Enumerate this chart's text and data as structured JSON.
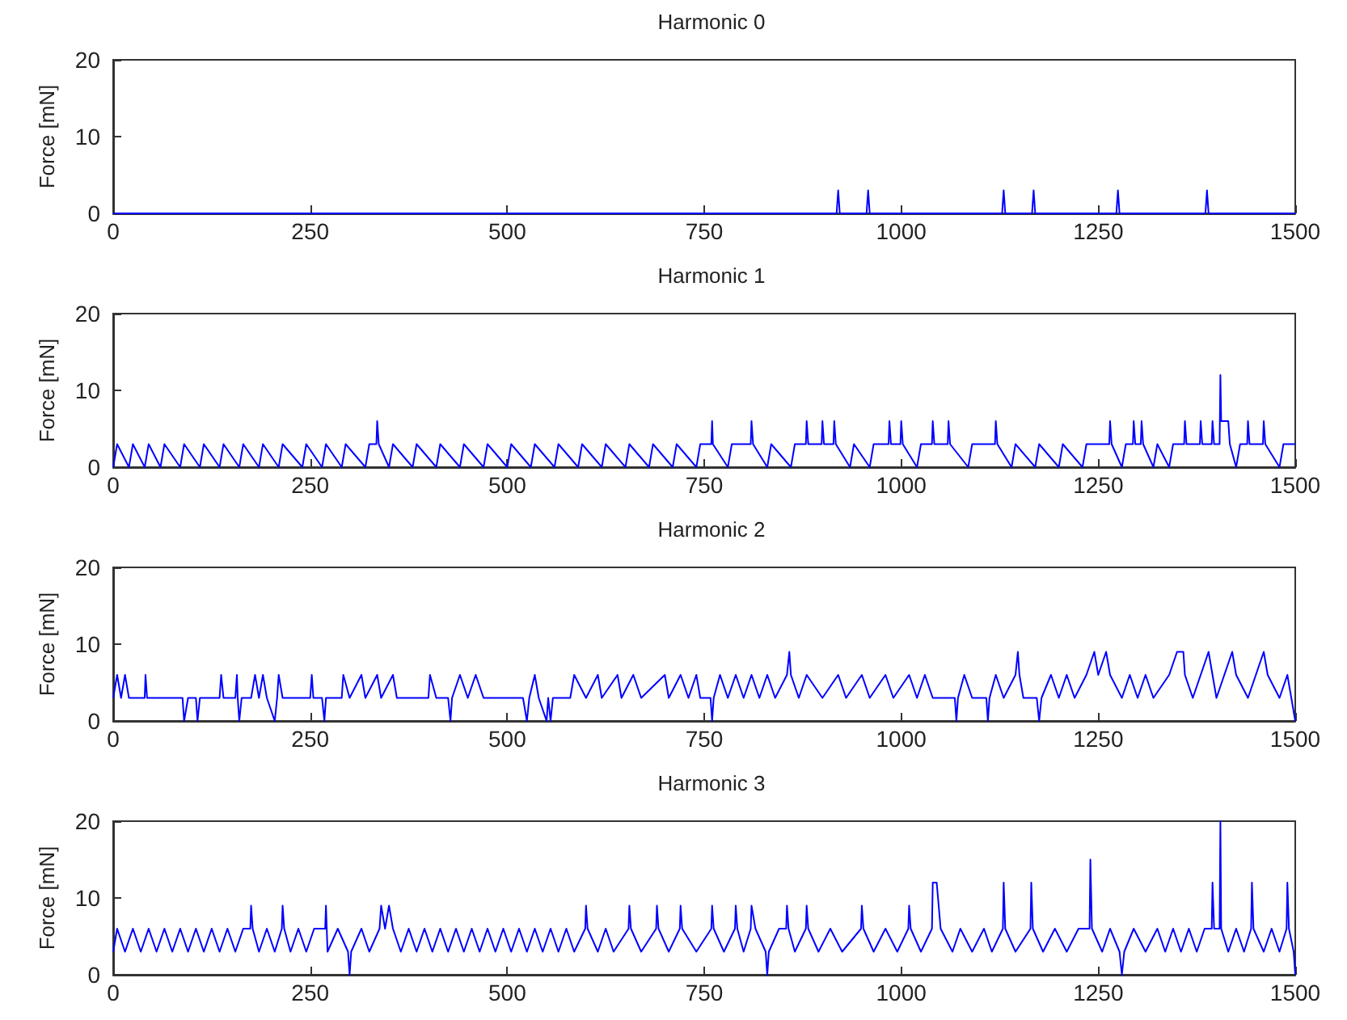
{
  "chart_data": [
    {
      "type": "line",
      "title": "Harmonic 0",
      "ylabel": "Force [mN]",
      "xlim": [
        0,
        1500
      ],
      "xticks": [
        0,
        250,
        500,
        750,
        1000,
        1250,
        1500
      ],
      "ylim": [
        0,
        20
      ],
      "yticks": [
        0,
        10,
        20
      ],
      "grid": false,
      "series": [
        {
          "color": "#0000ff",
          "x": [
            0,
            918,
            920,
            922,
            956,
            958,
            960,
            1128,
            1130,
            1132,
            1166,
            1168,
            1170,
            1273,
            1275,
            1277,
            1386,
            1388,
            1390,
            1500
          ],
          "values": [
            0,
            0,
            3,
            0,
            0,
            3,
            0,
            0,
            3,
            0,
            0,
            3,
            0,
            0,
            3,
            0,
            0,
            3,
            0,
            0
          ]
        }
      ]
    },
    {
      "type": "line",
      "title": "Harmonic 1",
      "ylabel": "Force [mN]",
      "xlim": [
        0,
        1500
      ],
      "xticks": [
        0,
        250,
        500,
        750,
        1000,
        1250,
        1500
      ],
      "ylim": [
        0,
        20
      ],
      "yticks": [
        0,
        10,
        20
      ],
      "grid": false,
      "series": [
        {
          "color": "#0000ff",
          "x": [
            0,
            5,
            20,
            25,
            40,
            45,
            60,
            65,
            85,
            90,
            110,
            115,
            135,
            140,
            160,
            165,
            185,
            190,
            210,
            215,
            240,
            245,
            265,
            270,
            290,
            295,
            320,
            325,
            334,
            335,
            337,
            350,
            355,
            380,
            385,
            410,
            415,
            440,
            445,
            470,
            475,
            500,
            505,
            530,
            535,
            560,
            565,
            590,
            595,
            620,
            625,
            650,
            655,
            680,
            685,
            710,
            715,
            740,
            745,
            759,
            760,
            761,
            780,
            785,
            809,
            810,
            812,
            830,
            835,
            860,
            865,
            879,
            880,
            882,
            899,
            900,
            902,
            914,
            915,
            917,
            935,
            940,
            960,
            965,
            984,
            985,
            987,
            999,
            1000,
            1002,
            1020,
            1025,
            1039,
            1040,
            1042,
            1059,
            1060,
            1062,
            1085,
            1090,
            1119,
            1120,
            1122,
            1140,
            1145,
            1170,
            1175,
            1200,
            1205,
            1230,
            1235,
            1264,
            1265,
            1267,
            1280,
            1285,
            1294,
            1295,
            1297,
            1304,
            1305,
            1307,
            1320,
            1325,
            1340,
            1345,
            1359,
            1360,
            1362,
            1379,
            1380,
            1382,
            1394,
            1395,
            1397,
            1404,
            1405,
            1406,
            1415,
            1417,
            1425,
            1430,
            1439,
            1440,
            1442,
            1459,
            1460,
            1462,
            1480,
            1485,
            1500
          ],
          "values": [
            0,
            3,
            0,
            3,
            0,
            3,
            0,
            3,
            0,
            3,
            0,
            3,
            0,
            3,
            0,
            3,
            0,
            3,
            0,
            3,
            0,
            3,
            0,
            3,
            0,
            3,
            0,
            3,
            3,
            6,
            3,
            0,
            3,
            0,
            3,
            0,
            3,
            0,
            3,
            0,
            3,
            0,
            3,
            0,
            3,
            0,
            3,
            0,
            3,
            0,
            3,
            0,
            3,
            0,
            3,
            0,
            3,
            0,
            3,
            3,
            6,
            3,
            0,
            3,
            3,
            6,
            3,
            0,
            3,
            0,
            3,
            3,
            6,
            3,
            3,
            6,
            3,
            3,
            6,
            3,
            0,
            3,
            0,
            3,
            3,
            6,
            3,
            3,
            6,
            3,
            0,
            3,
            3,
            6,
            3,
            3,
            6,
            3,
            0,
            3,
            3,
            6,
            3,
            0,
            3,
            0,
            3,
            0,
            3,
            0,
            3,
            3,
            6,
            3,
            0,
            3,
            3,
            6,
            3,
            3,
            6,
            3,
            0,
            3,
            0,
            3,
            3,
            6,
            3,
            3,
            6,
            3,
            3,
            6,
            3,
            3,
            12,
            6,
            6,
            3,
            0,
            3,
            3,
            6,
            3,
            3,
            6,
            3,
            0,
            3,
            3
          ]
        }
      ]
    },
    {
      "type": "line",
      "title": "Harmonic 2",
      "ylabel": "Force [mN]",
      "xlim": [
        0,
        1500
      ],
      "xticks": [
        0,
        250,
        500,
        750,
        1000,
        1250,
        1500
      ],
      "ylim": [
        0,
        20
      ],
      "yticks": [
        0,
        10,
        20
      ],
      "grid": false,
      "series": [
        {
          "color": "#0000ff",
          "x": [
            0,
            5,
            10,
            15,
            20,
            40,
            41,
            43,
            88,
            90,
            95,
            105,
            107,
            110,
            135,
            137,
            140,
            155,
            157,
            158,
            160,
            163,
            175,
            180,
            185,
            190,
            195,
            205,
            208,
            210,
            215,
            250,
            252,
            254,
            265,
            268,
            270,
            290,
            292,
            300,
            315,
            320,
            335,
            340,
            355,
            360,
            400,
            402,
            410,
            425,
            428,
            430,
            440,
            450,
            460,
            470,
            520,
            525,
            528,
            535,
            540,
            550,
            552,
            555,
            558,
            580,
            585,
            600,
            615,
            620,
            640,
            645,
            660,
            670,
            700,
            705,
            720,
            730,
            740,
            745,
            758,
            760,
            762,
            770,
            780,
            790,
            800,
            810,
            820,
            830,
            840,
            855,
            858,
            860,
            870,
            880,
            900,
            920,
            930,
            950,
            960,
            980,
            990,
            1010,
            1020,
            1030,
            1040,
            1068,
            1070,
            1072,
            1080,
            1090,
            1108,
            1110,
            1112,
            1120,
            1130,
            1145,
            1148,
            1150,
            1155,
            1172,
            1175,
            1178,
            1190,
            1200,
            1210,
            1220,
            1235,
            1245,
            1250,
            1260,
            1265,
            1280,
            1290,
            1300,
            1310,
            1320,
            1340,
            1350,
            1358,
            1360,
            1370,
            1380,
            1390,
            1395,
            1400,
            1410,
            1420,
            1425,
            1440,
            1450,
            1460,
            1465,
            1480,
            1490,
            1495,
            1500
          ],
          "values": [
            3,
            6,
            3,
            6,
            3,
            3,
            6,
            3,
            3,
            0,
            3,
            3,
            0,
            3,
            3,
            6,
            3,
            3,
            6,
            3,
            0,
            3,
            3,
            6,
            3,
            6,
            3,
            0,
            3,
            6,
            3,
            3,
            6,
            3,
            3,
            0,
            3,
            3,
            6,
            3,
            6,
            3,
            6,
            3,
            6,
            3,
            3,
            6,
            3,
            3,
            0,
            3,
            6,
            3,
            6,
            3,
            3,
            0,
            3,
            6,
            3,
            0,
            3,
            0,
            3,
            3,
            6,
            3,
            6,
            3,
            6,
            3,
            6,
            3,
            6,
            3,
            6,
            3,
            6,
            3,
            3,
            0,
            3,
            6,
            3,
            6,
            3,
            6,
            3,
            6,
            3,
            6,
            9,
            6,
            3,
            6,
            3,
            6,
            3,
            6,
            3,
            6,
            3,
            6,
            3,
            6,
            3,
            3,
            0,
            3,
            6,
            3,
            3,
            0,
            3,
            6,
            3,
            6,
            9,
            6,
            3,
            3,
            0,
            3,
            6,
            3,
            6,
            3,
            6,
            9,
            6,
            9,
            6,
            3,
            6,
            3,
            6,
            3,
            6,
            9,
            9,
            6,
            3,
            6,
            9,
            6,
            3,
            6,
            9,
            6,
            3,
            6,
            9,
            6,
            3,
            6,
            3,
            0
          ]
        }
      ]
    },
    {
      "type": "line",
      "title": "Harmonic 3",
      "ylabel": "Force [mN]",
      "xlim": [
        0,
        1500
      ],
      "xticks": [
        0,
        250,
        500,
        750,
        1000,
        1250,
        1500
      ],
      "ylim": [
        0,
        20
      ],
      "yticks": [
        0,
        10,
        20
      ],
      "grid": false,
      "series": [
        {
          "color": "#0000ff",
          "x": [
            0,
            5,
            15,
            25,
            35,
            45,
            55,
            65,
            75,
            85,
            95,
            105,
            115,
            125,
            135,
            145,
            155,
            165,
            174,
            175,
            177,
            185,
            195,
            205,
            214,
            215,
            217,
            225,
            235,
            245,
            255,
            269,
            270,
            272,
            285,
            298,
            300,
            302,
            315,
            325,
            338,
            340,
            345,
            350,
            355,
            365,
            375,
            385,
            395,
            405,
            415,
            425,
            435,
            445,
            455,
            465,
            475,
            485,
            495,
            505,
            515,
            525,
            535,
            545,
            555,
            565,
            575,
            585,
            599,
            600,
            602,
            615,
            625,
            635,
            654,
            655,
            657,
            670,
            689,
            690,
            692,
            705,
            719,
            720,
            722,
            740,
            759,
            760,
            762,
            775,
            789,
            790,
            792,
            800,
            809,
            810,
            815,
            828,
            830,
            832,
            845,
            854,
            855,
            857,
            865,
            879,
            880,
            882,
            895,
            910,
            925,
            949,
            950,
            952,
            965,
            980,
            995,
            1009,
            1010,
            1012,
            1025,
            1039,
            1040,
            1045,
            1050,
            1065,
            1075,
            1090,
            1105,
            1115,
            1129,
            1130,
            1132,
            1145,
            1164,
            1165,
            1167,
            1180,
            1195,
            1210,
            1225,
            1239,
            1240,
            1242,
            1255,
            1265,
            1277,
            1280,
            1283,
            1295,
            1310,
            1325,
            1335,
            1345,
            1355,
            1365,
            1375,
            1385,
            1394,
            1395,
            1397,
            1404,
            1405,
            1406,
            1415,
            1425,
            1435,
            1444,
            1445,
            1447,
            1460,
            1470,
            1480,
            1489,
            1490,
            1492,
            1498,
            1500
          ],
          "values": [
            3,
            6,
            3,
            6,
            3,
            6,
            3,
            6,
            3,
            6,
            3,
            6,
            3,
            6,
            3,
            6,
            3,
            6,
            6,
            9,
            6,
            3,
            6,
            3,
            6,
            9,
            6,
            3,
            6,
            3,
            6,
            6,
            9,
            3,
            6,
            3,
            0,
            3,
            6,
            3,
            6,
            9,
            6,
            9,
            6,
            3,
            6,
            3,
            6,
            3,
            6,
            3,
            6,
            3,
            6,
            3,
            6,
            3,
            6,
            3,
            6,
            3,
            6,
            3,
            6,
            3,
            6,
            3,
            6,
            9,
            6,
            3,
            6,
            3,
            6,
            9,
            6,
            3,
            6,
            9,
            6,
            3,
            6,
            9,
            6,
            3,
            6,
            9,
            6,
            3,
            6,
            9,
            6,
            3,
            6,
            9,
            6,
            3,
            0,
            3,
            6,
            6,
            9,
            6,
            3,
            6,
            9,
            6,
            3,
            6,
            3,
            6,
            9,
            6,
            3,
            6,
            3,
            6,
            9,
            6,
            3,
            6,
            12,
            12,
            6,
            3,
            6,
            3,
            6,
            3,
            6,
            12,
            6,
            3,
            6,
            12,
            6,
            3,
            6,
            3,
            6,
            6,
            15,
            6,
            3,
            6,
            3,
            0,
            3,
            6,
            3,
            6,
            3,
            6,
            3,
            6,
            3,
            6,
            6,
            12,
            6,
            6,
            20,
            6,
            3,
            6,
            3,
            6,
            12,
            6,
            3,
            6,
            3,
            6,
            12,
            6,
            3,
            0
          ]
        }
      ]
    }
  ]
}
